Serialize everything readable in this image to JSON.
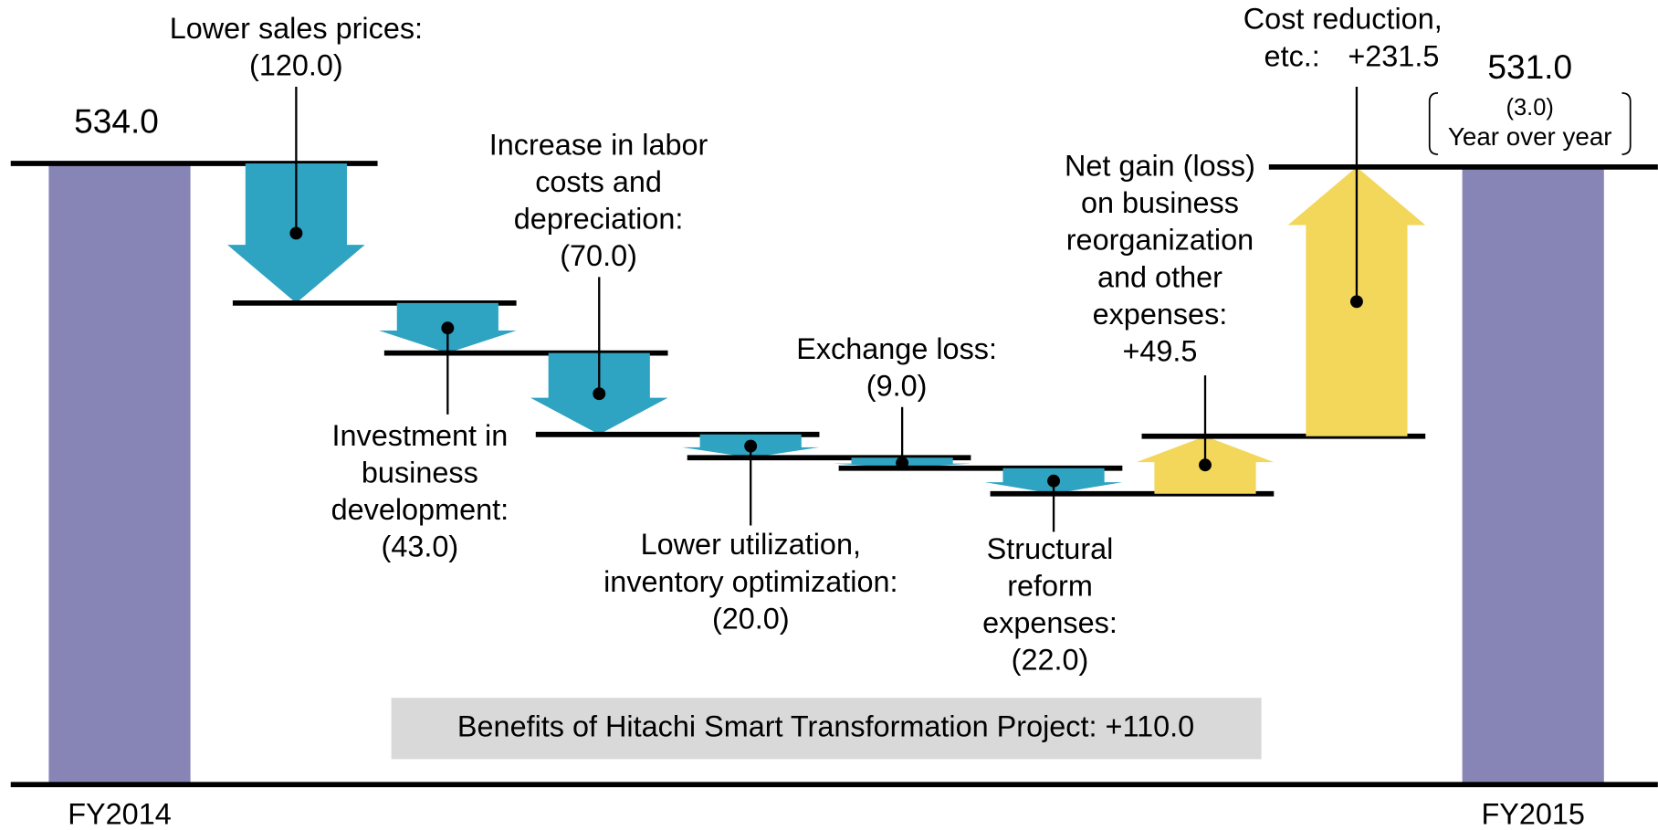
{
  "chart_data": {
    "type": "waterfall",
    "ylim": [
      0,
      560
    ],
    "start": {
      "label": "FY2014",
      "value": 534,
      "value_label": "534.0",
      "color": "#8784b6"
    },
    "end": {
      "label": "FY2015",
      "value": 531,
      "value_label": "531.0",
      "change": -3,
      "change_label": "(3.0)",
      "change_note": "Year over year",
      "color": "#8784b6"
    },
    "steps": {
      "categories": [
        [
          "Lower sales prices:"
        ],
        [
          "Investment in",
          "business",
          "development:"
        ],
        [
          "Increase in labor",
          "costs and",
          "depreciation:"
        ],
        [
          "Lower utilization,",
          "inventory optimization:"
        ],
        [
          "Exchange loss:"
        ],
        [
          "Structural",
          "reform",
          "expenses:"
        ],
        [
          "Net gain (loss)",
          "on business",
          "reorganization",
          "and other",
          "expenses:"
        ],
        [
          "Cost reduction,",
          "etc.:"
        ]
      ],
      "values": [
        -120,
        -43,
        -70,
        -20,
        -9,
        -22,
        49.5,
        231.5
      ],
      "value_labels": [
        "(120.0)",
        "(43.0)",
        "(70.0)",
        "(20.0)",
        "(9.0)",
        "(22.0)",
        "+49.5",
        "+231.5"
      ],
      "colors": [
        "#2ea3c2",
        "#2ea3c2",
        "#2ea3c2",
        "#2ea3c2",
        "#2ea3c2",
        "#2ea3c2",
        "#f3d75a",
        "#f3d75a"
      ]
    },
    "annotation": "Benefits of Hitachi Smart Transformation Project: +110.0"
  }
}
